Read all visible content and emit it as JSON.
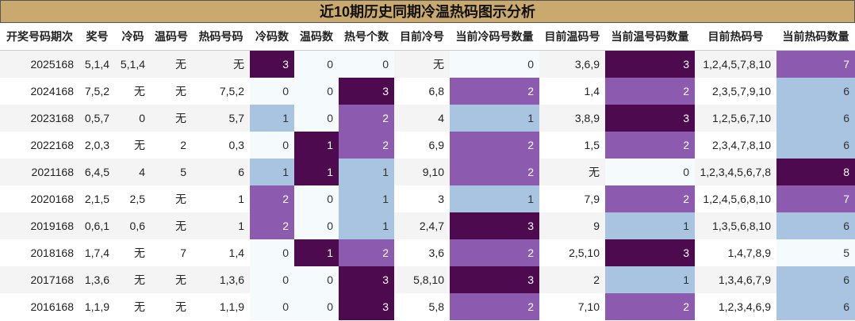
{
  "title": "近10期历史同期冷温热码图示分析",
  "table": {
    "columns": [
      "开奖号码期次",
      "奖号",
      "冷码",
      "温码号",
      "热码号码",
      "冷码数",
      "温码数",
      "热号个数",
      "目前冷号",
      "当前冷码号数量",
      "目前温码号",
      "当前温号码数量",
      "目前热码号",
      "当前热码数量"
    ],
    "rows": [
      [
        "2025168",
        "5,1,4",
        "5,1,4",
        "无",
        "无",
        3,
        0,
        0,
        "无",
        0,
        "3,6,9",
        3,
        "1,2,4,5,7,8,10",
        7
      ],
      [
        "2024168",
        "7,5,2",
        "无",
        "无",
        "7,5,2",
        0,
        0,
        3,
        "6,8",
        2,
        "1,4",
        2,
        "2,3,5,7,9,10",
        6
      ],
      [
        "2023168",
        "0,5,7",
        "0",
        "无",
        "5,7",
        1,
        0,
        2,
        "4",
        1,
        "3,8,9",
        3,
        "1,2,5,6,7,10",
        6
      ],
      [
        "2022168",
        "2,0,3",
        "无",
        "2",
        "0,3",
        0,
        1,
        2,
        "6,9",
        2,
        "1,5",
        2,
        "2,3,4,7,8,10",
        6
      ],
      [
        "2021168",
        "6,4,5",
        "4",
        "5",
        "6",
        1,
        1,
        1,
        "9,10",
        2,
        "无",
        0,
        "1,2,3,4,5,6,7,8",
        8
      ],
      [
        "2020168",
        "2,1,5",
        "2,5",
        "无",
        "1",
        2,
        0,
        1,
        "3",
        1,
        "7,9",
        2,
        "1,2,4,5,6,8,10",
        7
      ],
      [
        "2019168",
        "0,6,1",
        "0,6",
        "无",
        "1",
        2,
        0,
        1,
        "2,4,7",
        3,
        "9",
        1,
        "1,3,5,6,8,10",
        6
      ],
      [
        "2018168",
        "1,7,4",
        "无",
        "7",
        "1,4",
        0,
        1,
        2,
        "3,6",
        2,
        "2,5,10",
        3,
        "1,4,7,8,9",
        5
      ],
      [
        "2017168",
        "1,3,6",
        "无",
        "无",
        "1,3,6",
        0,
        0,
        3,
        "5,8,10",
        3,
        "2",
        1,
        "1,3,4,6,7,9",
        6
      ],
      [
        "2016168",
        "1,1,9",
        "无",
        "无",
        "1,1,9",
        0,
        0,
        3,
        "5,8",
        2,
        "7,10",
        2,
        "1,2,3,4,6,9",
        6
      ]
    ]
  }
}
